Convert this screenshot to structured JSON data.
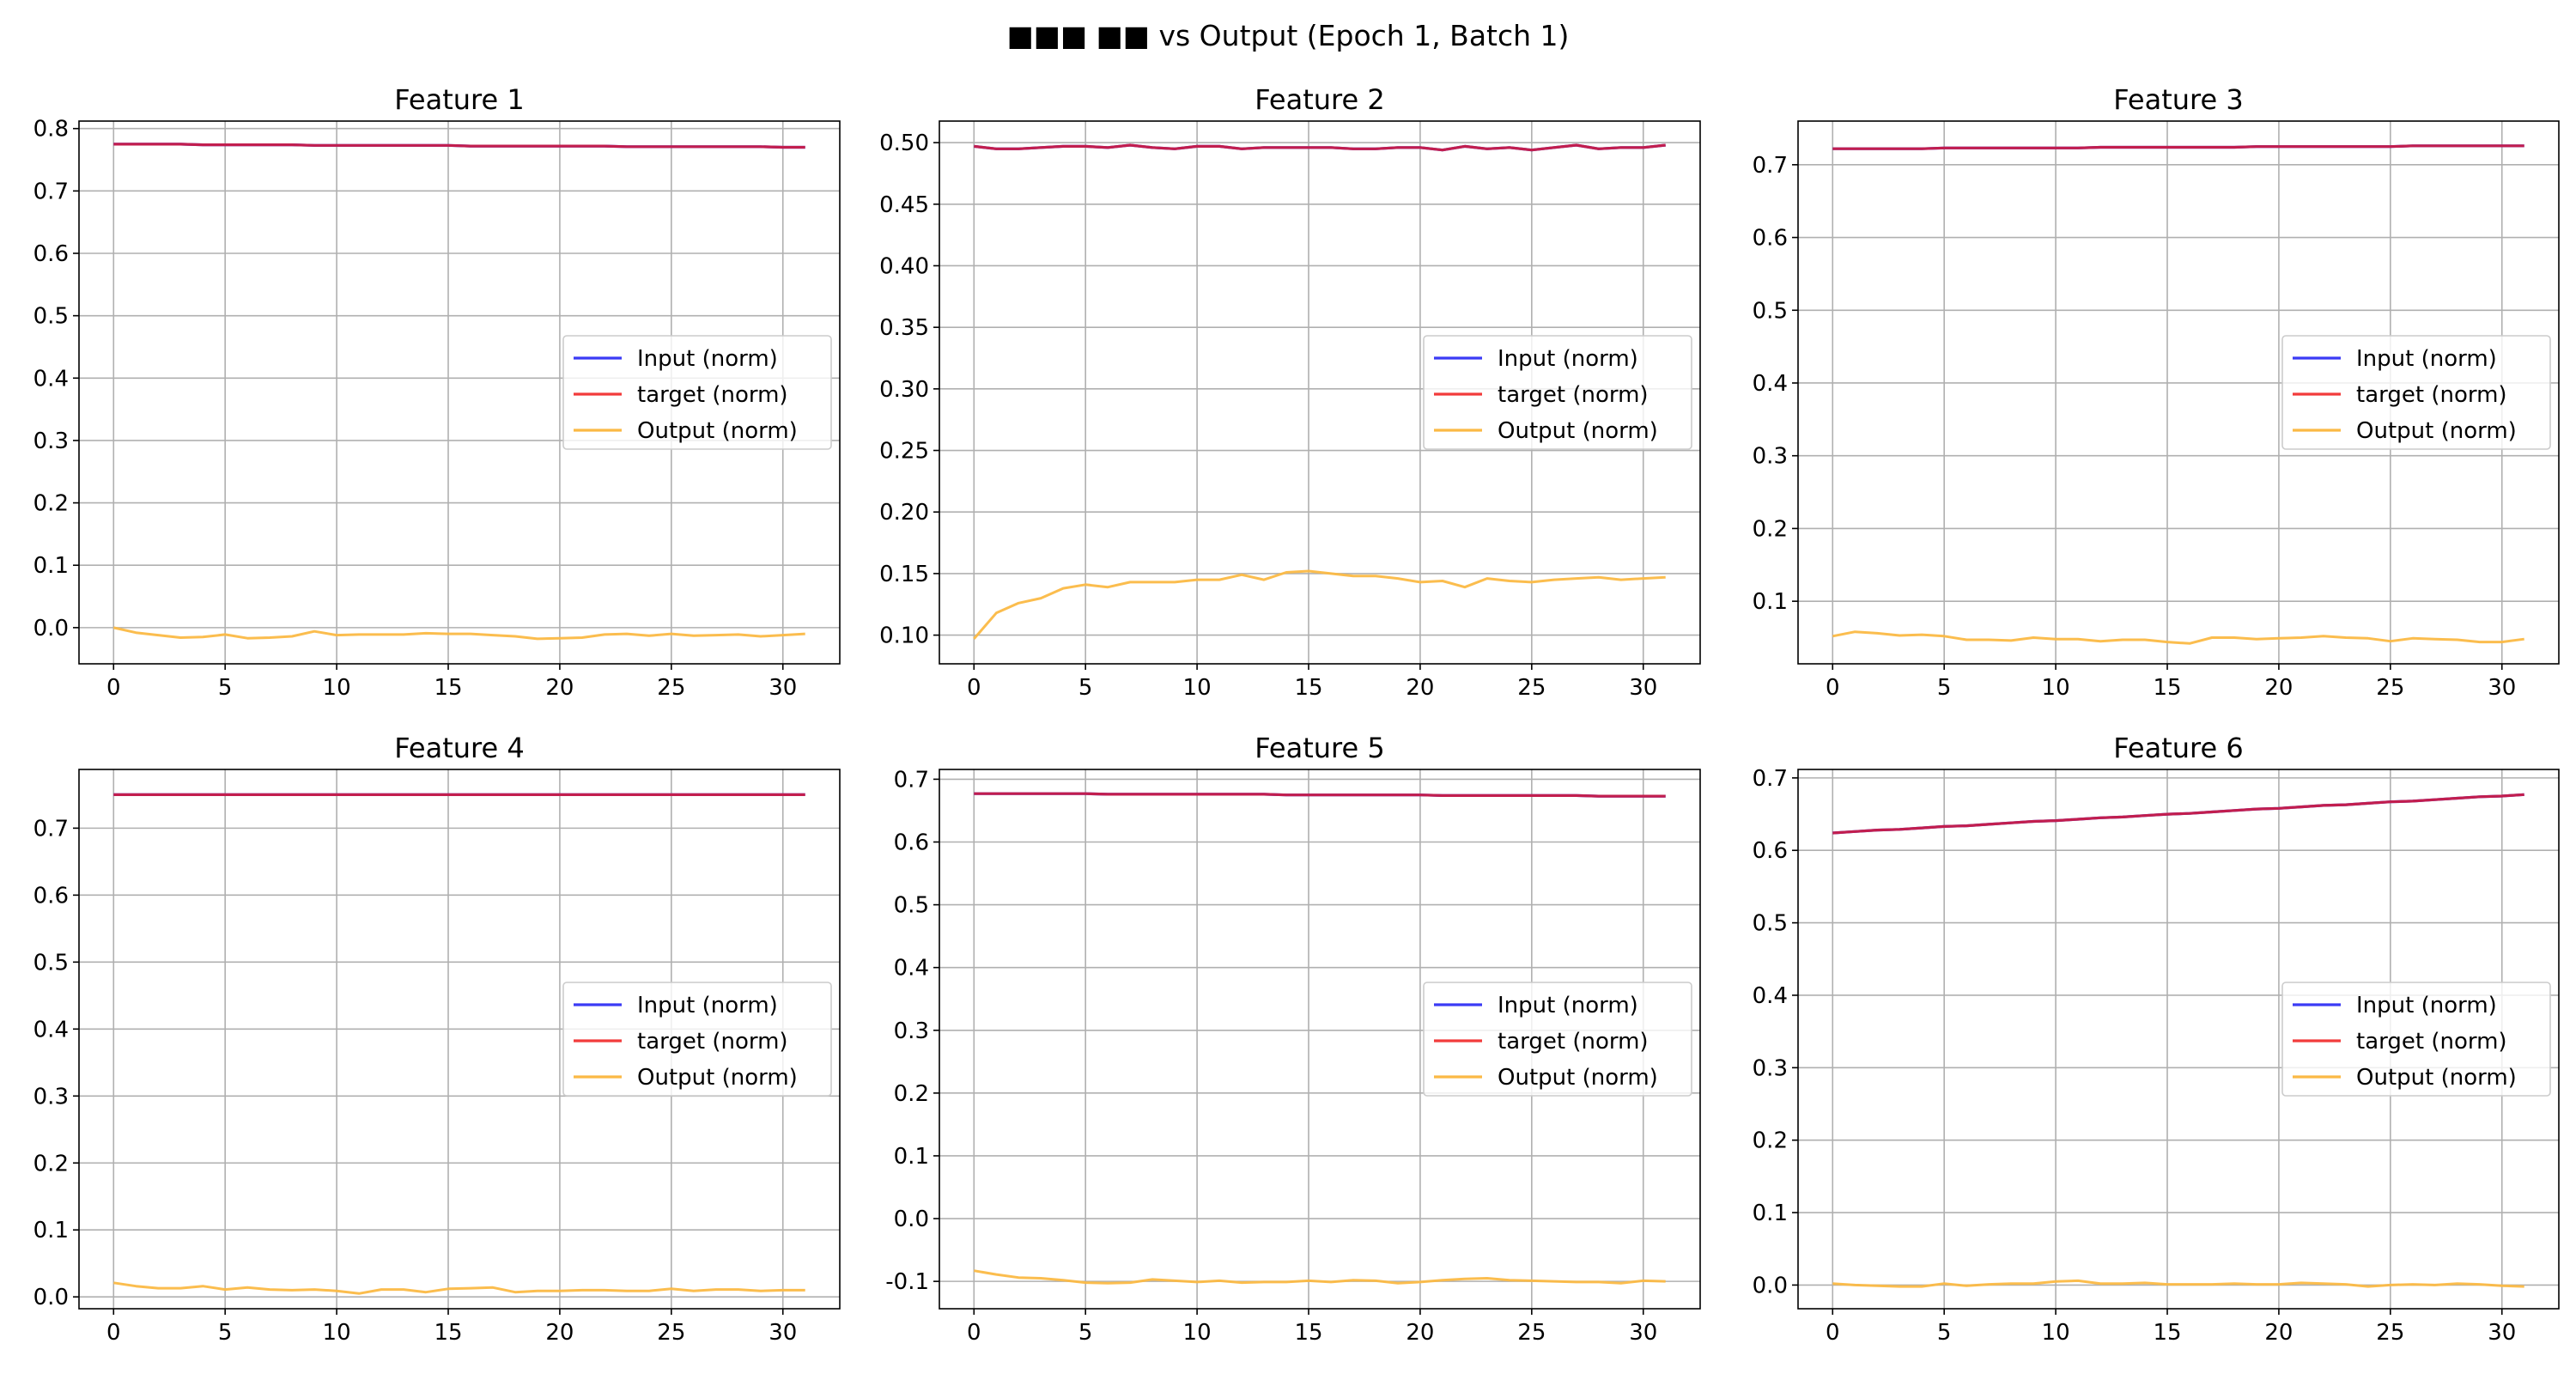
{
  "figure": {
    "suptitle": "■■■ ■■ vs Output (Epoch 1, Batch 1)"
  },
  "legend_labels": [
    "Input (norm)",
    "target (norm)",
    "Output (norm)"
  ],
  "colors": {
    "input": "#3b3bf5",
    "target": "#f23b3b",
    "overlap": "#c21e4e",
    "output": "#fbb945",
    "grid": "#b0b0b0",
    "axes": "#000000"
  },
  "chart_data": [
    {
      "type": "line",
      "title": "Feature 1",
      "xlabel": "",
      "ylabel": "",
      "xlim": [
        -1.55,
        32.55
      ],
      "ylim": [
        -0.058,
        0.812
      ],
      "xticks": [
        0,
        5,
        10,
        15,
        20,
        25,
        30
      ],
      "yticks": [
        0.0,
        0.1,
        0.2,
        0.3,
        0.4,
        0.5,
        0.6,
        0.7,
        0.8
      ],
      "grid": true,
      "legend": "center-right",
      "x": [
        0,
        1,
        2,
        3,
        4,
        5,
        6,
        7,
        8,
        9,
        10,
        11,
        12,
        13,
        14,
        15,
        16,
        17,
        18,
        19,
        20,
        21,
        22,
        23,
        24,
        25,
        26,
        27,
        28,
        29,
        30,
        31
      ],
      "series": [
        {
          "name": "Input (norm)",
          "color": "#3b3bf5",
          "values": [
            0.775,
            0.775,
            0.775,
            0.775,
            0.774,
            0.774,
            0.774,
            0.774,
            0.774,
            0.773,
            0.773,
            0.773,
            0.773,
            0.773,
            0.773,
            0.773,
            0.772,
            0.772,
            0.772,
            0.772,
            0.772,
            0.772,
            0.772,
            0.771,
            0.771,
            0.771,
            0.771,
            0.771,
            0.771,
            0.771,
            0.77,
            0.77
          ]
        },
        {
          "name": "target (norm)",
          "color": "#f23b3b",
          "values": [
            0.775,
            0.775,
            0.775,
            0.775,
            0.774,
            0.774,
            0.774,
            0.774,
            0.774,
            0.773,
            0.773,
            0.773,
            0.773,
            0.773,
            0.773,
            0.773,
            0.772,
            0.772,
            0.772,
            0.772,
            0.772,
            0.772,
            0.772,
            0.771,
            0.771,
            0.771,
            0.771,
            0.771,
            0.771,
            0.771,
            0.77,
            0.77
          ]
        },
        {
          "name": "Output (norm)",
          "color": "#fbb945",
          "values": [
            0.0,
            -0.008,
            -0.012,
            -0.016,
            -0.015,
            -0.011,
            -0.017,
            -0.016,
            -0.014,
            -0.006,
            -0.012,
            -0.011,
            -0.011,
            -0.011,
            -0.009,
            -0.01,
            -0.01,
            -0.012,
            -0.014,
            -0.018,
            -0.017,
            -0.016,
            -0.011,
            -0.01,
            -0.013,
            -0.01,
            -0.013,
            -0.012,
            -0.011,
            -0.014,
            -0.012,
            -0.01
          ]
        }
      ]
    },
    {
      "type": "line",
      "title": "Feature 2",
      "xlabel": "",
      "ylabel": "",
      "xlim": [
        -1.55,
        32.55
      ],
      "ylim": [
        0.0767,
        0.5175
      ],
      "xticks": [
        0,
        5,
        10,
        15,
        20,
        25,
        30
      ],
      "yticks": [
        0.1,
        0.15,
        0.2,
        0.25,
        0.3,
        0.35,
        0.4,
        0.45,
        0.5
      ],
      "grid": true,
      "legend": "center-right",
      "x": [
        0,
        1,
        2,
        3,
        4,
        5,
        6,
        7,
        8,
        9,
        10,
        11,
        12,
        13,
        14,
        15,
        16,
        17,
        18,
        19,
        20,
        21,
        22,
        23,
        24,
        25,
        26,
        27,
        28,
        29,
        30,
        31
      ],
      "series": [
        {
          "name": "Input (norm)",
          "color": "#3b3bf5",
          "values": [
            0.497,
            0.495,
            0.495,
            0.496,
            0.497,
            0.497,
            0.496,
            0.498,
            0.496,
            0.495,
            0.497,
            0.497,
            0.495,
            0.496,
            0.496,
            0.496,
            0.496,
            0.495,
            0.495,
            0.496,
            0.496,
            0.494,
            0.497,
            0.495,
            0.496,
            0.494,
            0.496,
            0.498,
            0.495,
            0.496,
            0.496,
            0.498
          ]
        },
        {
          "name": "target (norm)",
          "color": "#f23b3b",
          "values": [
            0.497,
            0.495,
            0.495,
            0.496,
            0.497,
            0.497,
            0.496,
            0.498,
            0.496,
            0.495,
            0.497,
            0.497,
            0.495,
            0.496,
            0.496,
            0.496,
            0.496,
            0.495,
            0.495,
            0.496,
            0.496,
            0.494,
            0.497,
            0.495,
            0.496,
            0.494,
            0.496,
            0.498,
            0.495,
            0.496,
            0.496,
            0.498
          ]
        },
        {
          "name": "Output (norm)",
          "color": "#fbb945",
          "values": [
            0.097,
            0.118,
            0.126,
            0.13,
            0.138,
            0.141,
            0.139,
            0.143,
            0.143,
            0.143,
            0.145,
            0.145,
            0.149,
            0.145,
            0.151,
            0.152,
            0.15,
            0.148,
            0.148,
            0.146,
            0.143,
            0.144,
            0.139,
            0.146,
            0.144,
            0.143,
            0.145,
            0.146,
            0.147,
            0.145,
            0.146,
            0.147
          ]
        }
      ]
    },
    {
      "type": "line",
      "title": "Feature 3",
      "xlabel": "",
      "ylabel": "",
      "xlim": [
        -1.55,
        32.55
      ],
      "ylim": [
        0.014,
        0.76
      ],
      "xticks": [
        0,
        5,
        10,
        15,
        20,
        25,
        30
      ],
      "yticks": [
        0.1,
        0.2,
        0.3,
        0.4,
        0.5,
        0.6,
        0.7
      ],
      "grid": true,
      "legend": "center-right",
      "x": [
        0,
        1,
        2,
        3,
        4,
        5,
        6,
        7,
        8,
        9,
        10,
        11,
        12,
        13,
        14,
        15,
        16,
        17,
        18,
        19,
        20,
        21,
        22,
        23,
        24,
        25,
        26,
        27,
        28,
        29,
        30,
        31
      ],
      "series": [
        {
          "name": "Input (norm)",
          "color": "#3b3bf5",
          "values": [
            0.722,
            0.722,
            0.722,
            0.722,
            0.722,
            0.723,
            0.723,
            0.723,
            0.723,
            0.723,
            0.723,
            0.723,
            0.724,
            0.724,
            0.724,
            0.724,
            0.724,
            0.724,
            0.724,
            0.725,
            0.725,
            0.725,
            0.725,
            0.725,
            0.725,
            0.725,
            0.726,
            0.726,
            0.726,
            0.726,
            0.726,
            0.726
          ]
        },
        {
          "name": "target (norm)",
          "color": "#f23b3b",
          "values": [
            0.722,
            0.722,
            0.722,
            0.722,
            0.722,
            0.723,
            0.723,
            0.723,
            0.723,
            0.723,
            0.723,
            0.723,
            0.724,
            0.724,
            0.724,
            0.724,
            0.724,
            0.724,
            0.724,
            0.725,
            0.725,
            0.725,
            0.725,
            0.725,
            0.725,
            0.725,
            0.726,
            0.726,
            0.726,
            0.726,
            0.726,
            0.726
          ]
        },
        {
          "name": "Output (norm)",
          "color": "#fbb945",
          "values": [
            0.052,
            0.058,
            0.056,
            0.053,
            0.054,
            0.052,
            0.047,
            0.047,
            0.046,
            0.05,
            0.048,
            0.048,
            0.045,
            0.047,
            0.047,
            0.044,
            0.042,
            0.05,
            0.05,
            0.048,
            0.049,
            0.05,
            0.052,
            0.05,
            0.049,
            0.045,
            0.049,
            0.048,
            0.047,
            0.044,
            0.044,
            0.048
          ]
        }
      ]
    },
    {
      "type": "line",
      "title": "Feature 4",
      "xlabel": "",
      "ylabel": "",
      "xlim": [
        -1.55,
        32.55
      ],
      "ylim": [
        -0.0177,
        0.7877
      ],
      "xticks": [
        0,
        5,
        10,
        15,
        20,
        25,
        30
      ],
      "yticks": [
        0.0,
        0.1,
        0.2,
        0.3,
        0.4,
        0.5,
        0.6,
        0.7
      ],
      "grid": true,
      "legend": "center-right",
      "x": [
        0,
        1,
        2,
        3,
        4,
        5,
        6,
        7,
        8,
        9,
        10,
        11,
        12,
        13,
        14,
        15,
        16,
        17,
        18,
        19,
        20,
        21,
        22,
        23,
        24,
        25,
        26,
        27,
        28,
        29,
        30,
        31
      ],
      "series": [
        {
          "name": "Input (norm)",
          "color": "#3b3bf5",
          "values": [
            0.75,
            0.75,
            0.75,
            0.75,
            0.75,
            0.75,
            0.75,
            0.75,
            0.75,
            0.75,
            0.75,
            0.75,
            0.75,
            0.75,
            0.75,
            0.75,
            0.75,
            0.75,
            0.75,
            0.75,
            0.75,
            0.75,
            0.75,
            0.75,
            0.75,
            0.75,
            0.75,
            0.75,
            0.75,
            0.75,
            0.75,
            0.75
          ]
        },
        {
          "name": "target (norm)",
          "color": "#f23b3b",
          "values": [
            0.75,
            0.75,
            0.75,
            0.75,
            0.75,
            0.75,
            0.75,
            0.75,
            0.75,
            0.75,
            0.75,
            0.75,
            0.75,
            0.75,
            0.75,
            0.75,
            0.75,
            0.75,
            0.75,
            0.75,
            0.75,
            0.75,
            0.75,
            0.75,
            0.75,
            0.75,
            0.75,
            0.75,
            0.75,
            0.75,
            0.75,
            0.75
          ]
        },
        {
          "name": "Output (norm)",
          "color": "#fbb945",
          "values": [
            0.021,
            0.016,
            0.013,
            0.013,
            0.016,
            0.011,
            0.014,
            0.011,
            0.01,
            0.011,
            0.009,
            0.005,
            0.011,
            0.011,
            0.007,
            0.012,
            0.013,
            0.014,
            0.007,
            0.009,
            0.009,
            0.01,
            0.01,
            0.009,
            0.009,
            0.012,
            0.009,
            0.011,
            0.011,
            0.009,
            0.01,
            0.01
          ]
        }
      ]
    },
    {
      "type": "line",
      "title": "Feature 5",
      "xlabel": "",
      "ylabel": "",
      "xlim": [
        -1.55,
        32.55
      ],
      "ylim": [
        -0.1436,
        0.7156
      ],
      "xticks": [
        0,
        5,
        10,
        15,
        20,
        25,
        30
      ],
      "yticks": [
        -0.1,
        0.0,
        0.1,
        0.2,
        0.3,
        0.4,
        0.5,
        0.6,
        0.7
      ],
      "grid": true,
      "legend": "center-right",
      "x": [
        0,
        1,
        2,
        3,
        4,
        5,
        6,
        7,
        8,
        9,
        10,
        11,
        12,
        13,
        14,
        15,
        16,
        17,
        18,
        19,
        20,
        21,
        22,
        23,
        24,
        25,
        26,
        27,
        28,
        29,
        30,
        31
      ],
      "series": [
        {
          "name": "Input (norm)",
          "color": "#3b3bf5",
          "values": [
            0.677,
            0.677,
            0.677,
            0.677,
            0.677,
            0.677,
            0.676,
            0.676,
            0.676,
            0.676,
            0.676,
            0.676,
            0.676,
            0.676,
            0.675,
            0.675,
            0.675,
            0.675,
            0.675,
            0.675,
            0.675,
            0.674,
            0.674,
            0.674,
            0.674,
            0.674,
            0.674,
            0.674,
            0.673,
            0.673,
            0.673,
            0.673
          ]
        },
        {
          "name": "target (norm)",
          "color": "#f23b3b",
          "values": [
            0.677,
            0.677,
            0.677,
            0.677,
            0.677,
            0.677,
            0.676,
            0.676,
            0.676,
            0.676,
            0.676,
            0.676,
            0.676,
            0.676,
            0.675,
            0.675,
            0.675,
            0.675,
            0.675,
            0.675,
            0.675,
            0.674,
            0.674,
            0.674,
            0.674,
            0.674,
            0.674,
            0.674,
            0.673,
            0.673,
            0.673,
            0.673
          ]
        },
        {
          "name": "Output (norm)",
          "color": "#fbb945",
          "values": [
            -0.083,
            -0.089,
            -0.094,
            -0.095,
            -0.098,
            -0.102,
            -0.103,
            -0.102,
            -0.097,
            -0.099,
            -0.101,
            -0.099,
            -0.102,
            -0.101,
            -0.101,
            -0.099,
            -0.101,
            -0.098,
            -0.099,
            -0.103,
            -0.101,
            -0.098,
            -0.096,
            -0.095,
            -0.098,
            -0.099,
            -0.1,
            -0.101,
            -0.101,
            -0.103,
            -0.099,
            -0.1
          ]
        }
      ]
    },
    {
      "type": "line",
      "title": "Feature 6",
      "xlabel": "",
      "ylabel": "",
      "xlim": [
        -1.55,
        32.55
      ],
      "ylim": [
        -0.0327,
        0.7117
      ],
      "xticks": [
        0,
        5,
        10,
        15,
        20,
        25,
        30
      ],
      "yticks": [
        0.0,
        0.1,
        0.2,
        0.3,
        0.4,
        0.5,
        0.6,
        0.7
      ],
      "grid": true,
      "legend": "center-right",
      "x": [
        0,
        1,
        2,
        3,
        4,
        5,
        6,
        7,
        8,
        9,
        10,
        11,
        12,
        13,
        14,
        15,
        16,
        17,
        18,
        19,
        20,
        21,
        22,
        23,
        24,
        25,
        26,
        27,
        28,
        29,
        30,
        31
      ],
      "series": [
        {
          "name": "Input (norm)",
          "color": "#3b3bf5",
          "values": [
            0.624,
            0.626,
            0.628,
            0.629,
            0.631,
            0.633,
            0.634,
            0.636,
            0.638,
            0.64,
            0.641,
            0.643,
            0.645,
            0.646,
            0.648,
            0.65,
            0.651,
            0.653,
            0.655,
            0.657,
            0.658,
            0.66,
            0.662,
            0.663,
            0.665,
            0.667,
            0.668,
            0.67,
            0.672,
            0.674,
            0.675,
            0.677
          ]
        },
        {
          "name": "target (norm)",
          "color": "#f23b3b",
          "values": [
            0.624,
            0.626,
            0.628,
            0.629,
            0.631,
            0.633,
            0.634,
            0.636,
            0.638,
            0.64,
            0.641,
            0.643,
            0.645,
            0.646,
            0.648,
            0.65,
            0.651,
            0.653,
            0.655,
            0.657,
            0.658,
            0.66,
            0.662,
            0.663,
            0.665,
            0.667,
            0.668,
            0.67,
            0.672,
            0.674,
            0.675,
            0.677
          ]
        },
        {
          "name": "Output (norm)",
          "color": "#fbb945",
          "values": [
            0.002,
            0.0,
            -0.001,
            -0.002,
            -0.002,
            0.002,
            -0.001,
            0.001,
            0.002,
            0.002,
            0.005,
            0.006,
            0.002,
            0.002,
            0.003,
            0.001,
            0.001,
            0.001,
            0.002,
            0.001,
            0.001,
            0.003,
            0.002,
            0.001,
            -0.002,
            0.0,
            0.001,
            0.0,
            0.002,
            0.001,
            -0.001,
            -0.002
          ]
        }
      ]
    }
  ]
}
